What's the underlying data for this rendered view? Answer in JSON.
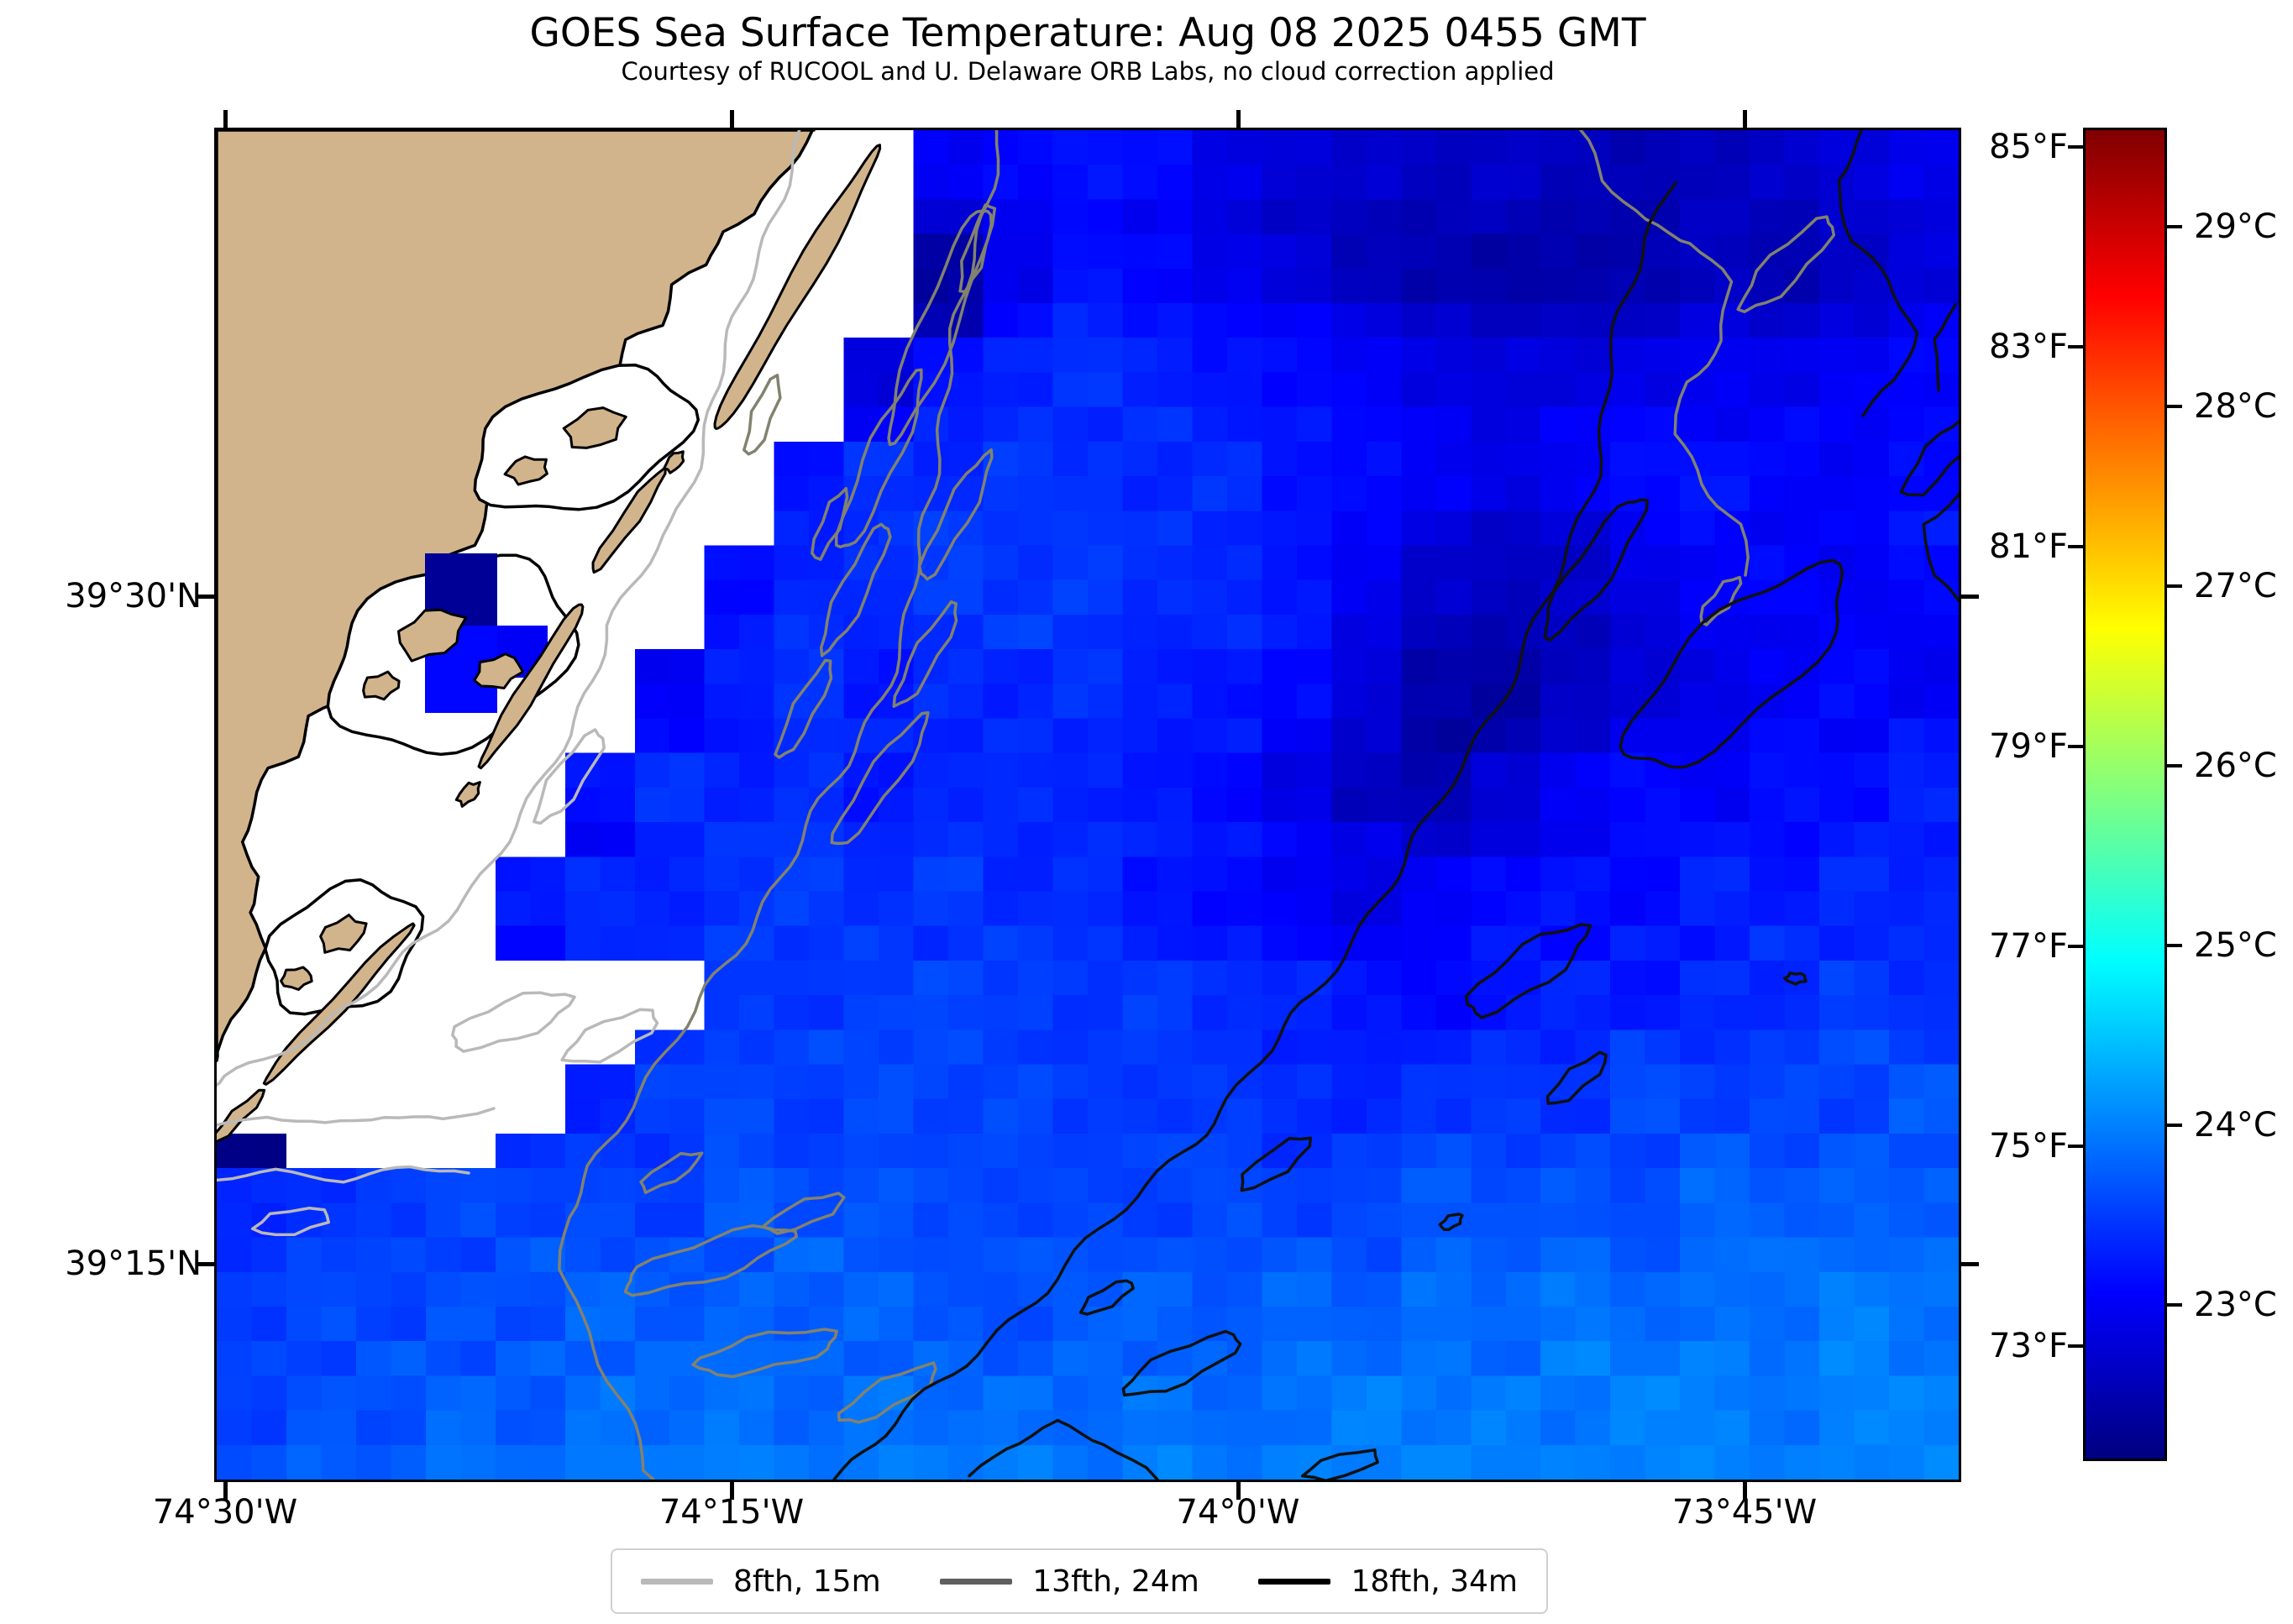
{
  "figure": {
    "title": "GOES Sea Surface Temperature: Aug 08 2025 0455 GMT",
    "subtitle": "Courtesy of RUCOOL and U. Delaware ORB Labs, no cloud correction applied"
  },
  "chart_data": {
    "type": "heatmap",
    "title": "GOES Sea Surface Temperature: Aug 08 2025 0455 GMT",
    "subtitle": "Courtesy of RUCOOL and U. Delaware ORB Labs, no cloud correction applied",
    "x_axis": {
      "ticks": [
        "74°30'W",
        "74°15'W",
        "74°0'W",
        "73°45'W"
      ]
    },
    "y_axis": {
      "ticks": [
        "39°30'N",
        "39°15'N"
      ]
    },
    "colorbar": {
      "colormap": "jet",
      "fahrenheit_ticks": [
        "85°F",
        "83°F",
        "81°F",
        "79°F",
        "77°F",
        "75°F",
        "73°F"
      ],
      "celsius_ticks": [
        "29°C",
        "28°C",
        "27°C",
        "26°C",
        "25°C",
        "24°C",
        "23°C"
      ],
      "range_fahrenheit": [
        71.9,
        85.2
      ],
      "range_celsius": [
        22.14,
        29.55
      ]
    },
    "legend": [
      {
        "label": "8fth, 15m",
        "color": "#b9b9b9"
      },
      {
        "label": "13fth, 24m",
        "color": "#5f5f5f"
      },
      {
        "label": "18fth, 34m",
        "color": "#000000"
      }
    ],
    "units": "°C",
    "land_color": "#d2b48c",
    "no_data_color": "#ffffff",
    "sst_grid": {
      "cols": 25,
      "rows": 26,
      "no_data": null,
      "values": [
        [
          null,
          null,
          null,
          null,
          null,
          null,
          null,
          null,
          null,
          null,
          23.0,
          23.1,
          23.2,
          23.1,
          22.9,
          22.8,
          22.7,
          22.6,
          22.7,
          22.6,
          22.5,
          22.6,
          22.7,
          22.8,
          22.9
        ],
        [
          null,
          null,
          null,
          null,
          null,
          null,
          null,
          null,
          null,
          null,
          22.7,
          23.0,
          23.1,
          23.0,
          22.8,
          22.7,
          22.6,
          22.5,
          22.6,
          22.5,
          22.5,
          22.6,
          22.6,
          22.7,
          22.8
        ],
        [
          null,
          null,
          null,
          null,
          null,
          null,
          null,
          null,
          null,
          null,
          22.4,
          22.9,
          23.2,
          23.1,
          22.9,
          22.8,
          22.6,
          22.5,
          22.4,
          22.5,
          22.5,
          22.6,
          22.5,
          22.7,
          22.8
        ],
        [
          null,
          null,
          null,
          null,
          null,
          null,
          null,
          null,
          null,
          null,
          22.5,
          23.1,
          23.3,
          23.2,
          23.1,
          23.0,
          22.9,
          22.7,
          22.6,
          22.6,
          22.7,
          22.8,
          22.7,
          22.8,
          23.0
        ],
        [
          null,
          null,
          null,
          null,
          null,
          null,
          null,
          null,
          null,
          22.8,
          23.2,
          23.3,
          23.4,
          23.3,
          23.2,
          23.1,
          23.0,
          22.9,
          22.8,
          22.8,
          22.9,
          23.0,
          22.9,
          23.0,
          23.1
        ],
        [
          null,
          null,
          null,
          null,
          null,
          null,
          null,
          null,
          null,
          23.0,
          23.3,
          23.4,
          23.3,
          23.4,
          23.3,
          23.2,
          23.1,
          23.0,
          22.9,
          23.0,
          23.1,
          23.0,
          23.1,
          23.0,
          23.1
        ],
        [
          null,
          null,
          null,
          null,
          null,
          null,
          null,
          null,
          23.2,
          23.4,
          23.3,
          23.5,
          23.4,
          23.3,
          23.4,
          23.2,
          23.1,
          23.0,
          22.9,
          23.0,
          23.1,
          23.2,
          23.1,
          23.0,
          23.1
        ],
        [
          null,
          null,
          null,
          null,
          null,
          null,
          null,
          null,
          23.3,
          23.4,
          23.5,
          23.4,
          23.5,
          23.4,
          23.3,
          23.2,
          23.1,
          22.8,
          22.7,
          22.8,
          23.0,
          23.1,
          23.0,
          23.1,
          23.2
        ],
        [
          null,
          null,
          null,
          null,
          null,
          null,
          null,
          23.1,
          23.3,
          23.4,
          23.5,
          23.4,
          23.5,
          23.4,
          23.3,
          23.2,
          23.0,
          22.7,
          22.6,
          22.7,
          22.9,
          23.0,
          23.1,
          23.0,
          23.1
        ],
        [
          null,
          null,
          null,
          null,
          null,
          null,
          null,
          23.2,
          23.4,
          23.3,
          23.4,
          23.5,
          23.4,
          23.3,
          23.4,
          23.2,
          22.9,
          22.6,
          22.5,
          22.6,
          22.8,
          23.0,
          22.9,
          23.1,
          23.0
        ],
        [
          null,
          null,
          null,
          null,
          null,
          null,
          23.0,
          23.3,
          23.4,
          23.2,
          23.4,
          23.3,
          23.4,
          23.3,
          23.2,
          23.1,
          22.8,
          22.5,
          22.4,
          22.6,
          22.8,
          22.9,
          23.0,
          23.1,
          23.0
        ],
        [
          null,
          null,
          null,
          null,
          null,
          null,
          23.1,
          23.2,
          23.4,
          23.3,
          23.3,
          23.4,
          23.3,
          23.2,
          23.3,
          23.0,
          22.7,
          22.4,
          22.5,
          22.7,
          22.9,
          23.0,
          23.1,
          23.0,
          23.2
        ],
        [
          null,
          null,
          null,
          null,
          null,
          23.2,
          23.4,
          23.3,
          23.4,
          23.2,
          23.3,
          23.4,
          23.3,
          23.2,
          23.1,
          22.9,
          22.6,
          22.5,
          22.8,
          23.0,
          23.1,
          23.0,
          23.2,
          23.1,
          23.3
        ],
        [
          null,
          null,
          null,
          null,
          null,
          23.0,
          23.3,
          23.4,
          23.5,
          23.3,
          23.4,
          23.3,
          23.4,
          23.3,
          23.2,
          23.1,
          22.9,
          22.7,
          22.8,
          23.0,
          23.1,
          23.2,
          23.1,
          23.3,
          23.2
        ],
        [
          null,
          null,
          null,
          null,
          23.2,
          23.4,
          23.3,
          23.4,
          23.5,
          23.4,
          23.5,
          23.3,
          23.4,
          23.2,
          23.1,
          23.0,
          22.9,
          23.0,
          23.1,
          23.2,
          23.1,
          23.3,
          23.2,
          23.4,
          23.3
        ],
        [
          null,
          null,
          null,
          null,
          23.1,
          23.3,
          23.4,
          23.5,
          23.4,
          23.5,
          23.4,
          23.5,
          23.4,
          23.3,
          23.2,
          23.1,
          23.0,
          23.1,
          23.2,
          23.1,
          23.3,
          23.2,
          23.4,
          23.3,
          23.4
        ],
        [
          null,
          null,
          null,
          null,
          null,
          null,
          null,
          23.5,
          23.4,
          23.5,
          23.6,
          23.5,
          23.4,
          23.5,
          23.4,
          23.3,
          23.2,
          23.1,
          23.2,
          23.3,
          23.2,
          23.4,
          23.3,
          23.5,
          23.4
        ],
        [
          null,
          null,
          null,
          null,
          null,
          null,
          23.4,
          23.5,
          23.6,
          23.5,
          23.6,
          23.5,
          23.4,
          23.5,
          23.4,
          23.3,
          23.2,
          23.3,
          23.4,
          23.3,
          23.5,
          23.4,
          23.5,
          23.6,
          23.5
        ],
        [
          null,
          null,
          null,
          null,
          null,
          23.3,
          23.5,
          23.6,
          23.5,
          23.6,
          23.5,
          23.6,
          23.5,
          23.4,
          23.5,
          23.4,
          23.3,
          23.4,
          23.5,
          23.4,
          23.6,
          23.5,
          23.6,
          23.5,
          23.7
        ],
        [
          22.2,
          null,
          null,
          null,
          23.4,
          23.5,
          23.4,
          23.6,
          23.5,
          23.6,
          23.5,
          23.6,
          23.5,
          23.6,
          23.5,
          23.4,
          23.5,
          23.6,
          23.5,
          23.6,
          23.5,
          23.7,
          23.6,
          23.7,
          23.6
        ],
        [
          23.3,
          23.4,
          23.5,
          23.6,
          23.5,
          23.6,
          23.5,
          23.7,
          23.6,
          23.7,
          23.6,
          23.5,
          23.6,
          23.5,
          23.6,
          23.5,
          23.6,
          23.7,
          23.6,
          23.7,
          23.6,
          23.8,
          23.7,
          23.8,
          23.7
        ],
        [
          23.4,
          23.5,
          23.6,
          23.5,
          23.7,
          23.6,
          23.7,
          23.6,
          23.8,
          23.7,
          23.6,
          23.7,
          23.6,
          23.7,
          23.6,
          23.7,
          23.6,
          23.8,
          23.7,
          23.8,
          23.7,
          23.8,
          23.9,
          23.8,
          23.9
        ],
        [
          23.5,
          23.6,
          23.5,
          23.7,
          23.6,
          23.8,
          23.7,
          23.8,
          23.7,
          23.8,
          23.7,
          23.6,
          23.7,
          23.8,
          23.7,
          23.8,
          23.7,
          23.9,
          23.8,
          23.9,
          23.8,
          23.9,
          23.8,
          24.0,
          23.9
        ],
        [
          23.6,
          23.5,
          23.7,
          23.6,
          23.8,
          23.7,
          23.8,
          23.9,
          23.8,
          23.7,
          23.8,
          23.7,
          23.8,
          23.7,
          23.8,
          23.9,
          23.8,
          23.9,
          23.8,
          24.0,
          23.9,
          24.0,
          23.9,
          24.0,
          23.9
        ],
        [
          23.5,
          23.7,
          23.6,
          23.8,
          23.7,
          23.9,
          23.8,
          23.9,
          23.8,
          23.9,
          23.8,
          23.9,
          23.8,
          23.9,
          23.8,
          23.9,
          24.0,
          23.9,
          24.0,
          23.9,
          24.0,
          24.0,
          23.9,
          24.0,
          24.0
        ],
        [
          23.6,
          23.8,
          23.7,
          23.9,
          23.8,
          24.0,
          23.9,
          24.0,
          23.9,
          24.0,
          23.9,
          24.0,
          23.9,
          24.0,
          23.9,
          24.0,
          24.0,
          24.0,
          24.0,
          24.0,
          24.0,
          24.0,
          24.0,
          24.0,
          24.0
        ]
      ]
    }
  }
}
